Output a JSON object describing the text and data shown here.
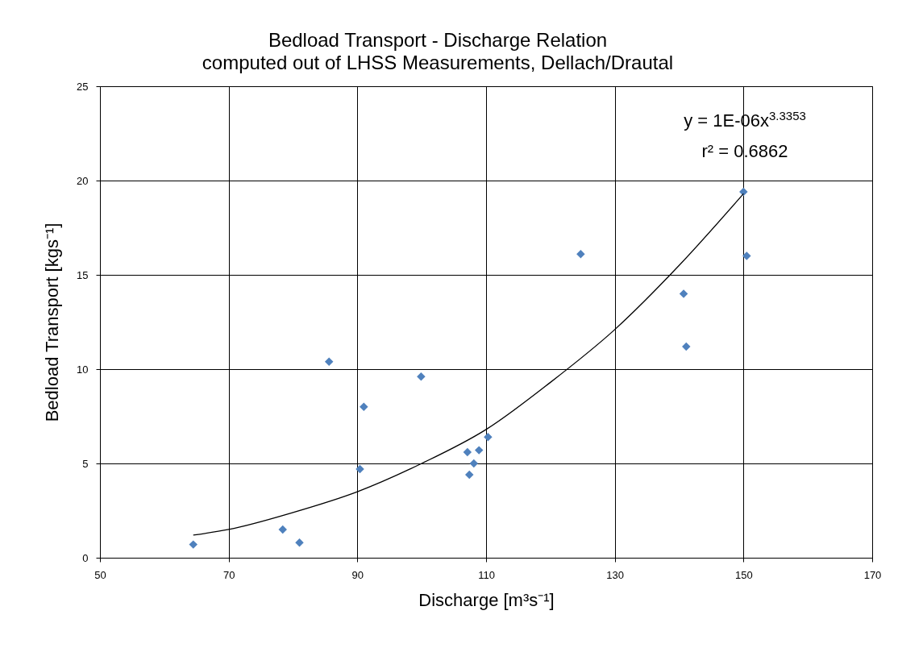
{
  "chart_data": {
    "type": "scatter",
    "title": "Bedload Transport - Discharge Relation",
    "subtitle": "computed out of LHSS Measurements, Dellach/Drautal",
    "xlabel": "Discharge [m³s⁻¹]",
    "ylabel": "Bedload Transport [kgs⁻¹]",
    "annotations": [
      "y = 1E-06x$^{3.3353}$",
      "r² = 0.6862"
    ],
    "series": [
      {
        "type": "scatter",
        "color": "#4f81bd",
        "x": [
          64.5,
          78.4,
          81.0,
          85.6,
          90.4,
          91.0,
          99.9,
          107.1,
          107.4,
          108.1,
          108.9,
          110.3,
          124.7,
          140.7,
          141.1,
          150.0,
          150.5
        ],
        "values": [
          0.7,
          1.5,
          0.8,
          10.4,
          4.7,
          8.0,
          9.6,
          5.6,
          4.4,
          5.0,
          5.7,
          6.4,
          16.1,
          14.0,
          11.2,
          19.4,
          16.0
        ]
      },
      {
        "type": "line",
        "marker": "none",
        "color": "#000000",
        "x": [
          64.5,
          70,
          80,
          90,
          100,
          110,
          120,
          130,
          140,
          150
        ],
        "values": [
          1.2,
          1.5,
          2.4,
          3.5,
          5.0,
          6.8,
          9.3,
          12.1,
          15.5,
          19.3
        ]
      }
    ],
    "marker": "diamond",
    "xlim": [
      50,
      170
    ],
    "ylim": [
      0,
      25
    ],
    "xticks": [
      50,
      70,
      90,
      110,
      130,
      150,
      170
    ],
    "yticks": [
      0,
      5,
      10,
      15,
      20,
      25
    ],
    "grid": true
  }
}
